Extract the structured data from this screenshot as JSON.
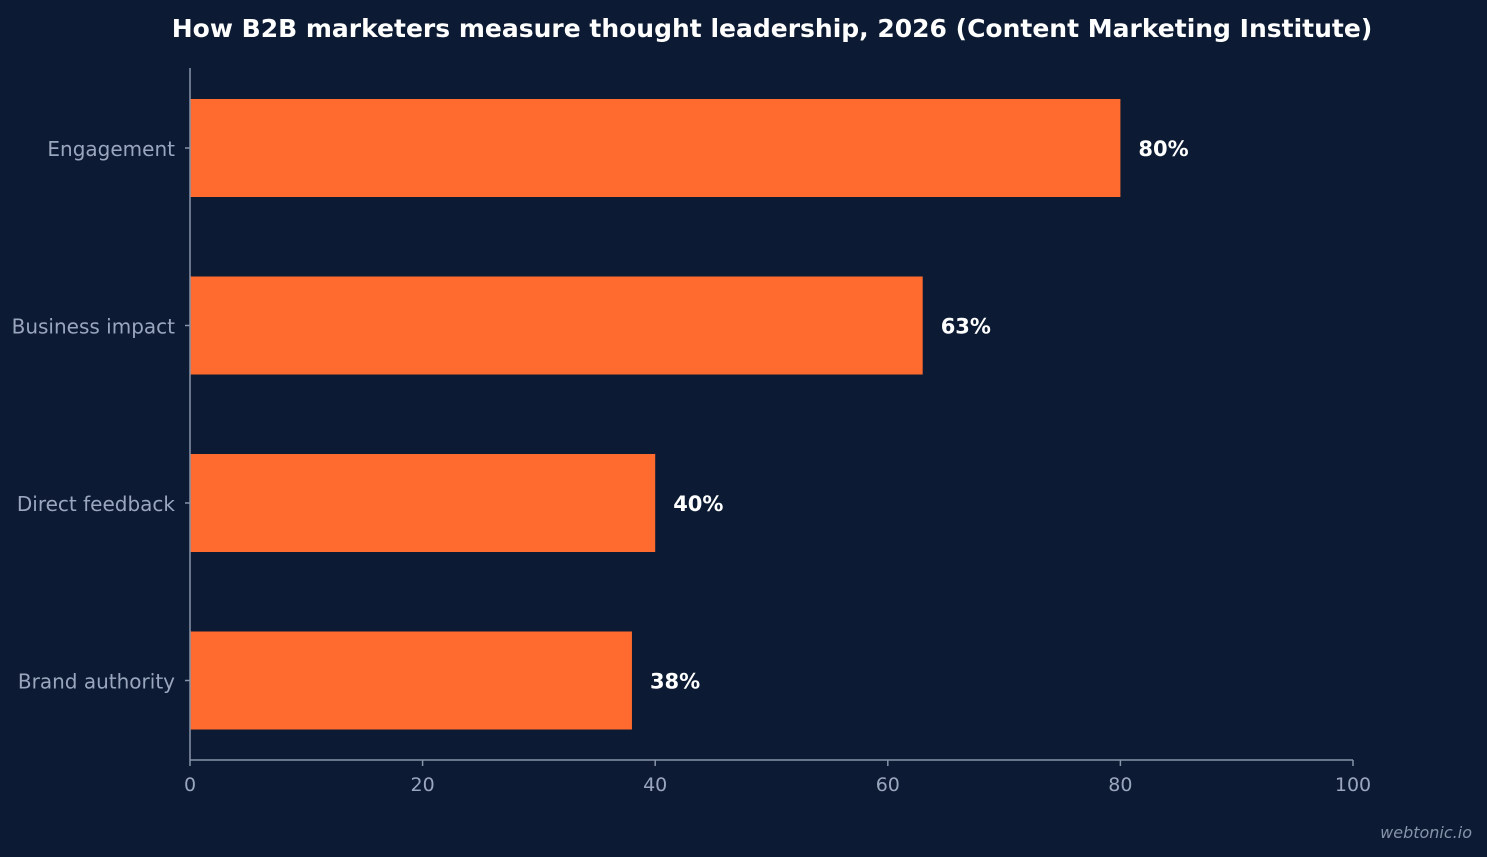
{
  "chart_data": {
    "type": "bar",
    "orientation": "horizontal",
    "title": "How B2B marketers measure thought leadership, 2026 (Content Marketing Institute)",
    "categories": [
      "Engagement",
      "Business impact",
      "Direct feedback",
      "Brand authority"
    ],
    "values": [
      80,
      63,
      40,
      38
    ],
    "value_labels": [
      "80%",
      "63%",
      "40%",
      "38%"
    ],
    "xlim": [
      0,
      100
    ],
    "x_ticks": [
      0,
      20,
      40,
      60,
      80,
      100
    ],
    "x_tick_labels": [
      "0",
      "20",
      "40",
      "60",
      "80",
      "100"
    ],
    "xlabel": "",
    "ylabel": "",
    "grid": false,
    "legend": "none",
    "colors": {
      "background": "#0c1b33",
      "bar": "#ff6b2e",
      "axis": "#8793a8",
      "tick_text": "#9aa6bd",
      "title": "#ffffff",
      "value_text": "#ffffff"
    }
  },
  "watermark": "webtonic.io"
}
